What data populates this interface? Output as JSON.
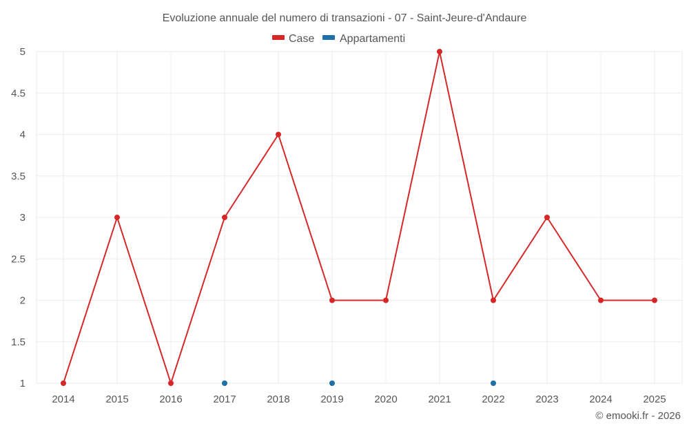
{
  "chart_data": {
    "type": "line",
    "title": "Evoluzione annuale del numero di transazioni - 07 - Saint-Jeure-d'Andaure",
    "x": [
      "2014",
      "2015",
      "2016",
      "2017",
      "2018",
      "2019",
      "2020",
      "2021",
      "2022",
      "2023",
      "2024",
      "2025"
    ],
    "ylim": [
      1,
      5
    ],
    "yticks": [
      "1",
      "1.5",
      "2",
      "2.5",
      "3",
      "3.5",
      "4",
      "4.5",
      "5"
    ],
    "ytick_values": [
      1,
      1.5,
      2,
      2.5,
      3,
      3.5,
      4,
      4.5,
      5
    ],
    "grid": true,
    "legend_position": "top-center",
    "series": [
      {
        "name": "Case",
        "color": "#d62728",
        "values": [
          1,
          3,
          1,
          3,
          4,
          2,
          2,
          5,
          2,
          3,
          2,
          2
        ],
        "line": true
      },
      {
        "name": "Appartamenti",
        "color": "#1f6fa8",
        "values": [
          null,
          null,
          null,
          1,
          null,
          1,
          null,
          null,
          1,
          null,
          null,
          null
        ],
        "line": false
      }
    ]
  },
  "credit": "© emooki.fr - 2026"
}
